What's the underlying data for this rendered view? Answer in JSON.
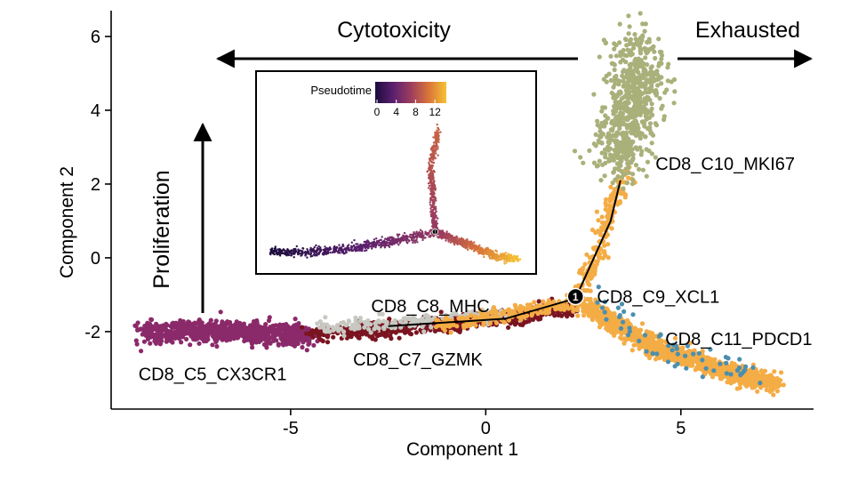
{
  "chart_data": {
    "type": "scatter",
    "xlabel": "Component 1",
    "ylabel": "Component 2",
    "xlim": [
      -9.6,
      8.4
    ],
    "ylim": [
      -4.1,
      6.7
    ],
    "xticks": [
      {
        "value": -5,
        "label": "-5"
      },
      {
        "value": 0,
        "label": "0"
      },
      {
        "value": 5,
        "label": "5"
      }
    ],
    "yticks": [
      {
        "value": -2,
        "label": "-2"
      },
      {
        "value": 0,
        "label": "0"
      },
      {
        "value": 2,
        "label": "2"
      },
      {
        "value": 4,
        "label": "4"
      },
      {
        "value": 6,
        "label": "6"
      }
    ],
    "grid": false,
    "colors": {
      "c5": "#8b2a6a",
      "c7": "#7a1420",
      "c8": "#c8c8c2",
      "c9": "#f4ac45",
      "c10": "#a9b07a",
      "c11": "#f4ac45",
      "blue": "#4a8fb0"
    },
    "clusters": [
      {
        "name": "CD8_C5_CX3CR1",
        "color_key": "c5",
        "path": [
          [
            -8.8,
            -2.0
          ],
          [
            -6.5,
            -2.0
          ],
          [
            -4.5,
            -2.1
          ]
        ],
        "spread": [
          0.12,
          0.14
        ],
        "n": 900
      },
      {
        "name": "CD8_C7_GZMK",
        "color_key": "c7",
        "path": [
          [
            -4.5,
            -2.05
          ],
          [
            -2.0,
            -1.9
          ],
          [
            0.5,
            -1.65
          ],
          [
            2.3,
            -1.3
          ]
        ],
        "spread": [
          0.1,
          0.1
        ],
        "n": 650
      },
      {
        "name": "CD8_C8_MHC",
        "color_key": "c8",
        "path": [
          [
            -4.2,
            -1.9
          ],
          [
            -1.5,
            -1.7
          ],
          [
            0.5,
            -1.5
          ]
        ],
        "spread": [
          0.12,
          0.1
        ],
        "n": 180
      },
      {
        "name": "CD8_C9_XCL1",
        "color_key": "c9",
        "path": [
          [
            -1.2,
            -1.85
          ],
          [
            2.3,
            -1.2
          ],
          [
            2.9,
            0.2
          ],
          [
            3.2,
            1.3
          ],
          [
            3.6,
            2.4
          ]
        ],
        "spread": [
          0.1,
          0.1
        ],
        "n": 420
      },
      {
        "name": "CD8_C10_MKI67",
        "color_key": "c10",
        "path": [
          [
            3.3,
            2.6
          ],
          [
            3.8,
            4.2
          ],
          [
            3.9,
            5.6
          ]
        ],
        "spread": [
          0.35,
          0.45
        ],
        "n": 700
      },
      {
        "name": "CD8_C11_PDCD1",
        "color_key": "c11",
        "path": [
          [
            2.5,
            -1.3
          ],
          [
            4.5,
            -2.5
          ],
          [
            6.5,
            -3.2
          ],
          [
            7.5,
            -3.4
          ]
        ],
        "spread": [
          0.12,
          0.12
        ],
        "n": 1200
      }
    ],
    "branch_point": {
      "x": 2.3,
      "y": -1.05,
      "label": "1"
    },
    "trajectory_line": [
      [
        -2.5,
        -1.85
      ],
      [
        0.5,
        -1.65
      ],
      [
        2.3,
        -1.1
      ],
      [
        3.2,
        1.0
      ],
      [
        3.45,
        2.1
      ]
    ],
    "cluster_labels": [
      {
        "text": "CD8_C10_MKI67",
        "x": 4.35,
        "y": 2.55,
        "anchor": "start"
      },
      {
        "text": "CD8_C9_XCL1",
        "x": 2.85,
        "y": -1.05,
        "anchor": "start"
      },
      {
        "text": "CD8_C11_PDCD1",
        "x": 4.6,
        "y": -2.2,
        "anchor": "start"
      },
      {
        "text": "CD8_C8_MHC",
        "x": 0.1,
        "y": -1.3,
        "anchor": "end"
      },
      {
        "text": "CD8_C7_GZMK",
        "x": -3.4,
        "y": -2.75,
        "anchor": "start"
      },
      {
        "text": "CD8_C5_CX3CR1",
        "x": -8.9,
        "y": -3.15,
        "anchor": "start"
      }
    ],
    "annotations": {
      "cytotoxicity": "Cytotoxicity",
      "exhausted": "Exhausted",
      "proliferation": "Proliferation"
    },
    "inset": {
      "legend_title": "Pseudotime",
      "legend_ticks": [
        {
          "value": 0,
          "label": "0"
        },
        {
          "value": 4,
          "label": "4"
        },
        {
          "value": 8,
          "label": "8"
        },
        {
          "value": 12,
          "label": "12"
        }
      ],
      "legend_range": [
        0,
        14
      ],
      "xlim": [
        -9.6,
        8.4
      ],
      "ylim": [
        -2.9,
        5.8
      ],
      "branch_point": {
        "x": 2.0,
        "y": -0.9,
        "label": "1"
      },
      "branches": [
        {
          "path": [
            [
              -9.0,
              -2.0
            ],
            [
              -6.5,
              -2.0
            ],
            [
              -4.0,
              -1.85
            ],
            [
              -1.0,
              -1.45
            ],
            [
              2.0,
              -0.9
            ]
          ],
          "pt": [
            0,
            6.5
          ],
          "spread": [
            0.12,
            0.12
          ],
          "n": 700
        },
        {
          "path": [
            [
              2.0,
              -0.9
            ],
            [
              1.85,
              0.8
            ],
            [
              1.7,
              2.6
            ],
            [
              2.2,
              4.6
            ]
          ],
          "pt": [
            6.5,
            9.5
          ],
          "spread": [
            0.1,
            0.18
          ],
          "n": 400
        },
        {
          "path": [
            [
              2.0,
              -0.9
            ],
            [
              4.2,
              -1.6
            ],
            [
              6.0,
              -2.2
            ],
            [
              7.5,
              -2.4
            ]
          ],
          "pt": [
            6.5,
            14
          ],
          "spread": [
            0.14,
            0.1
          ],
          "n": 650
        }
      ]
    }
  }
}
